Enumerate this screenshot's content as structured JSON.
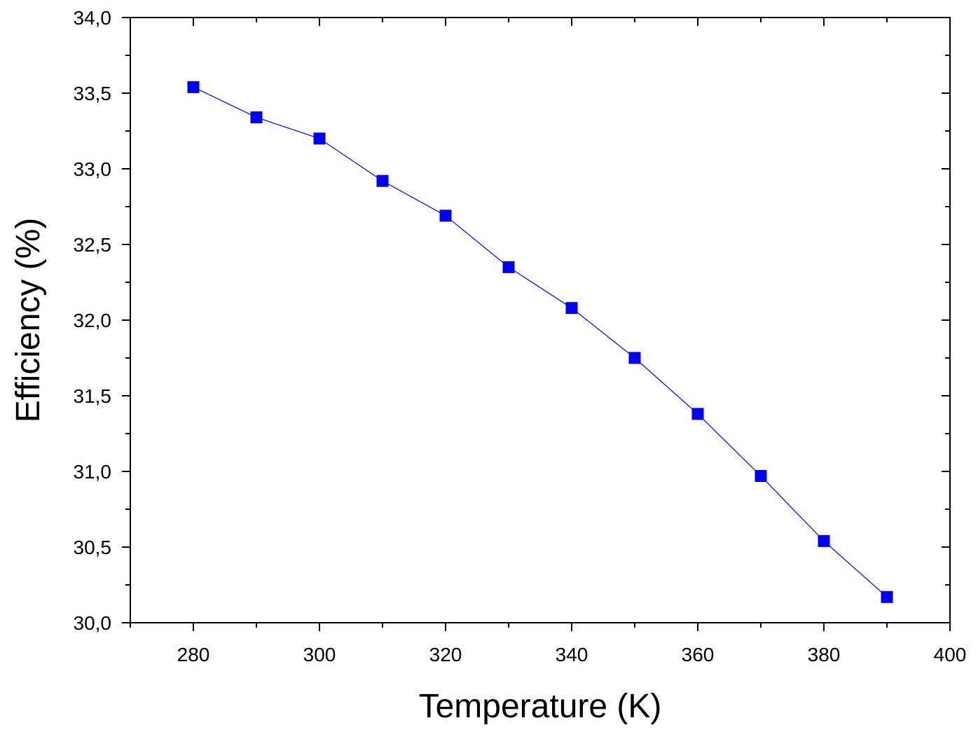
{
  "chart_data": {
    "type": "line",
    "title": "",
    "xlabel": "Temperature (K)",
    "ylabel": "Efficiency (%)",
    "xlim": [
      270,
      400
    ],
    "ylim": [
      30.0,
      34.0
    ],
    "x_ticks": [
      280,
      300,
      320,
      340,
      360,
      380,
      400
    ],
    "x_tick_labels": [
      "280",
      "300",
      "320",
      "340",
      "360",
      "380",
      "400"
    ],
    "y_ticks": [
      30.0,
      30.5,
      31.0,
      31.5,
      32.0,
      32.5,
      33.0,
      33.5,
      34.0
    ],
    "y_tick_labels": [
      "30,0",
      "30,5",
      "31,0",
      "31,5",
      "32,0",
      "32,5",
      "33,0",
      "33,5",
      "34,0"
    ],
    "grid": false,
    "legend": "none",
    "series": [
      {
        "marker": "square",
        "color": "#0000ff",
        "x": [
          280,
          290,
          300,
          310,
          320,
          330,
          340,
          350,
          360,
          370,
          380,
          390
        ],
        "y": [
          33.54,
          33.34,
          33.2,
          32.92,
          32.69,
          32.35,
          32.08,
          31.75,
          31.38,
          30.97,
          30.54,
          30.17
        ]
      }
    ]
  }
}
